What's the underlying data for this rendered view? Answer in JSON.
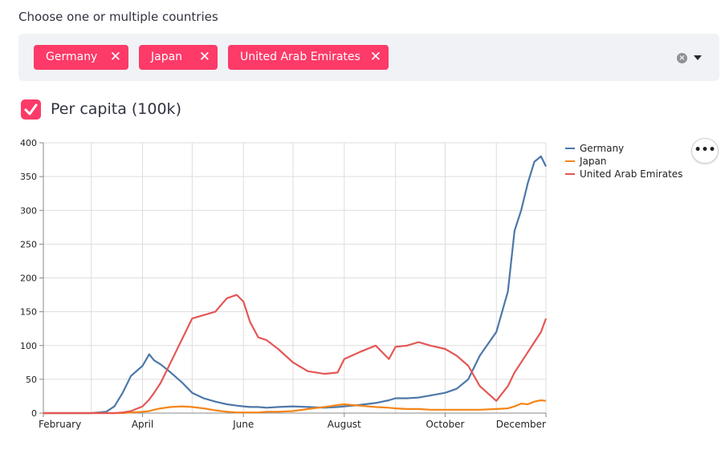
{
  "select": {
    "label": "Choose one or multiple countries",
    "tags": [
      {
        "label": "Germany"
      },
      {
        "label": "Japan"
      },
      {
        "label": "United Arab Emirates"
      }
    ],
    "clear_icon": "clear-icon",
    "dropdown_icon": "chevron-down-icon"
  },
  "checkbox": {
    "label": "Per capita (100k)",
    "checked": true
  },
  "menu": {
    "icon": "more-horizontal-icon",
    "label": "•••"
  },
  "colors": {
    "accent": "#fd3a68",
    "germany": "#4c78a8",
    "japan": "#f58518",
    "uae": "#e45756"
  },
  "chart_data": {
    "type": "line",
    "xlabel": "",
    "ylabel": "",
    "ylim": [
      0,
      400
    ],
    "yticks": [
      0,
      50,
      100,
      150,
      200,
      250,
      300,
      350,
      400
    ],
    "xticks": [
      "February",
      "April",
      "June",
      "August",
      "October",
      "December"
    ],
    "grid": true,
    "legend_position": "right",
    "x": [
      "Feb 1",
      "Feb 15",
      "Mar 1",
      "Mar 10",
      "Mar 15",
      "Mar 20",
      "Mar 25",
      "Apr 1",
      "Apr 5",
      "Apr 8",
      "Apr 12",
      "Apr 18",
      "Apr 25",
      "May 1",
      "May 8",
      "May 15",
      "May 22",
      "May 28",
      "Jun 1",
      "Jun 5",
      "Jun 10",
      "Jun 15",
      "Jun 22",
      "Jul 1",
      "Jul 10",
      "Jul 20",
      "Jul 28",
      "Aug 1",
      "Aug 10",
      "Aug 20",
      "Aug 28",
      "Sep 1",
      "Sep 8",
      "Sep 15",
      "Sep 22",
      "Oct 1",
      "Oct 8",
      "Oct 15",
      "Oct 22",
      "Nov 1",
      "Nov 8",
      "Nov 12",
      "Nov 16",
      "Nov 20",
      "Nov 24",
      "Nov 28",
      "Dec 1"
    ],
    "series": [
      {
        "name": "Germany",
        "values": [
          0,
          0,
          0,
          2,
          10,
          30,
          55,
          70,
          87,
          78,
          72,
          60,
          45,
          30,
          22,
          17,
          13,
          11,
          10,
          9,
          9,
          8,
          9,
          10,
          9,
          8,
          9,
          10,
          12,
          15,
          19,
          22,
          22,
          23,
          26,
          30,
          36,
          50,
          85,
          120,
          180,
          270,
          300,
          340,
          372,
          380,
          365
        ]
      },
      {
        "name": "Japan",
        "values": [
          0,
          0,
          0,
          0,
          0,
          0,
          1,
          2,
          3,
          5,
          7,
          9,
          10,
          9,
          7,
          4,
          2,
          1,
          1,
          1,
          1,
          2,
          2,
          3,
          6,
          9,
          12,
          13,
          11,
          9,
          8,
          7,
          6,
          6,
          5,
          5,
          5,
          5,
          5,
          6,
          7,
          10,
          14,
          13,
          17,
          19,
          18
        ]
      },
      {
        "name": "United Arab Emirates",
        "values": [
          0,
          0,
          0,
          0,
          0,
          1,
          3,
          10,
          20,
          30,
          45,
          75,
          110,
          140,
          145,
          150,
          170,
          175,
          165,
          135,
          112,
          108,
          95,
          75,
          62,
          58,
          60,
          80,
          90,
          100,
          80,
          98,
          100,
          105,
          100,
          95,
          85,
          70,
          40,
          18,
          40,
          60,
          75,
          90,
          105,
          120,
          140
        ]
      }
    ]
  }
}
